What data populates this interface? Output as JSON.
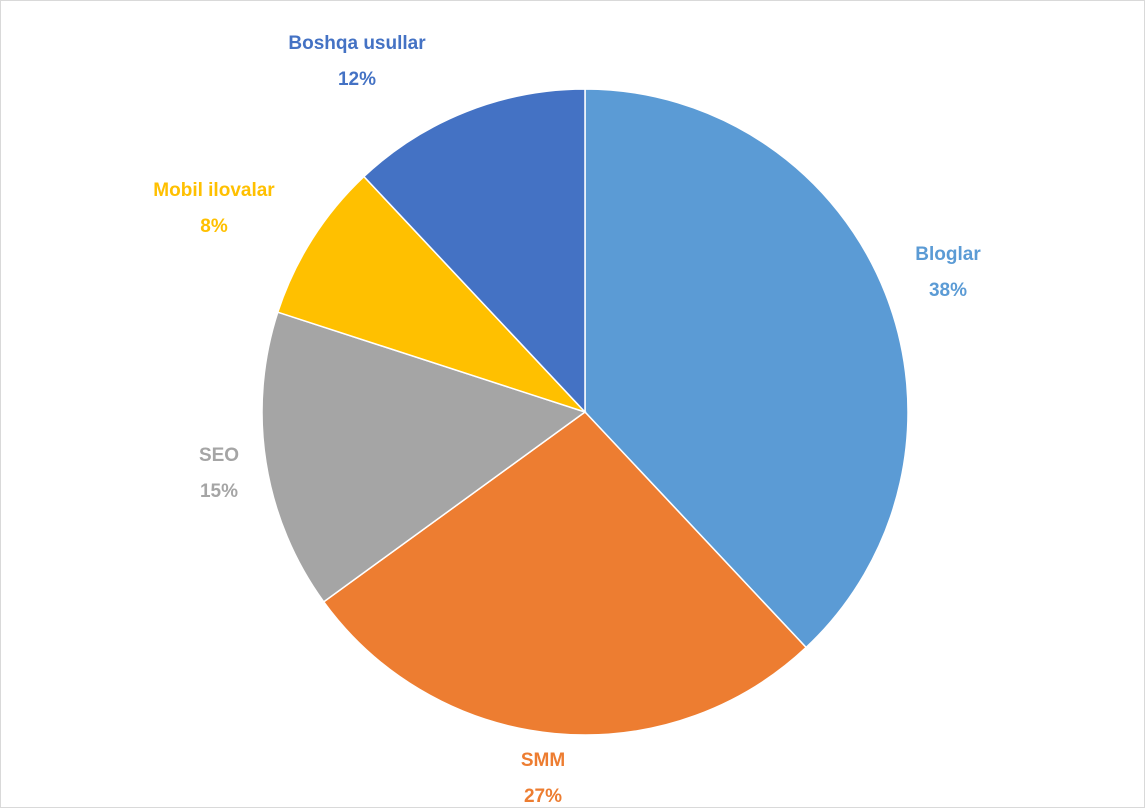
{
  "chart_data": {
    "type": "pie",
    "slices": [
      {
        "name": "Bloglar",
        "value": 38,
        "label": "38%",
        "color": "#5B9BD5"
      },
      {
        "name": "SMM",
        "value": 27,
        "label": "27%",
        "color": "#ED7D31"
      },
      {
        "name": "SEO",
        "value": 15,
        "label": "15%",
        "color": "#A5A5A5"
      },
      {
        "name": "Mobil ilovalar",
        "value": 8,
        "label": "8%",
        "color": "#FFC000"
      },
      {
        "name": "Boshqa usullar",
        "value": 12,
        "label": "12%",
        "color": "#4472C4"
      }
    ],
    "start_angle": "12 o'clock",
    "direction": "clockwise",
    "legend": "none",
    "data_labels": "category name and percentage, outside"
  }
}
